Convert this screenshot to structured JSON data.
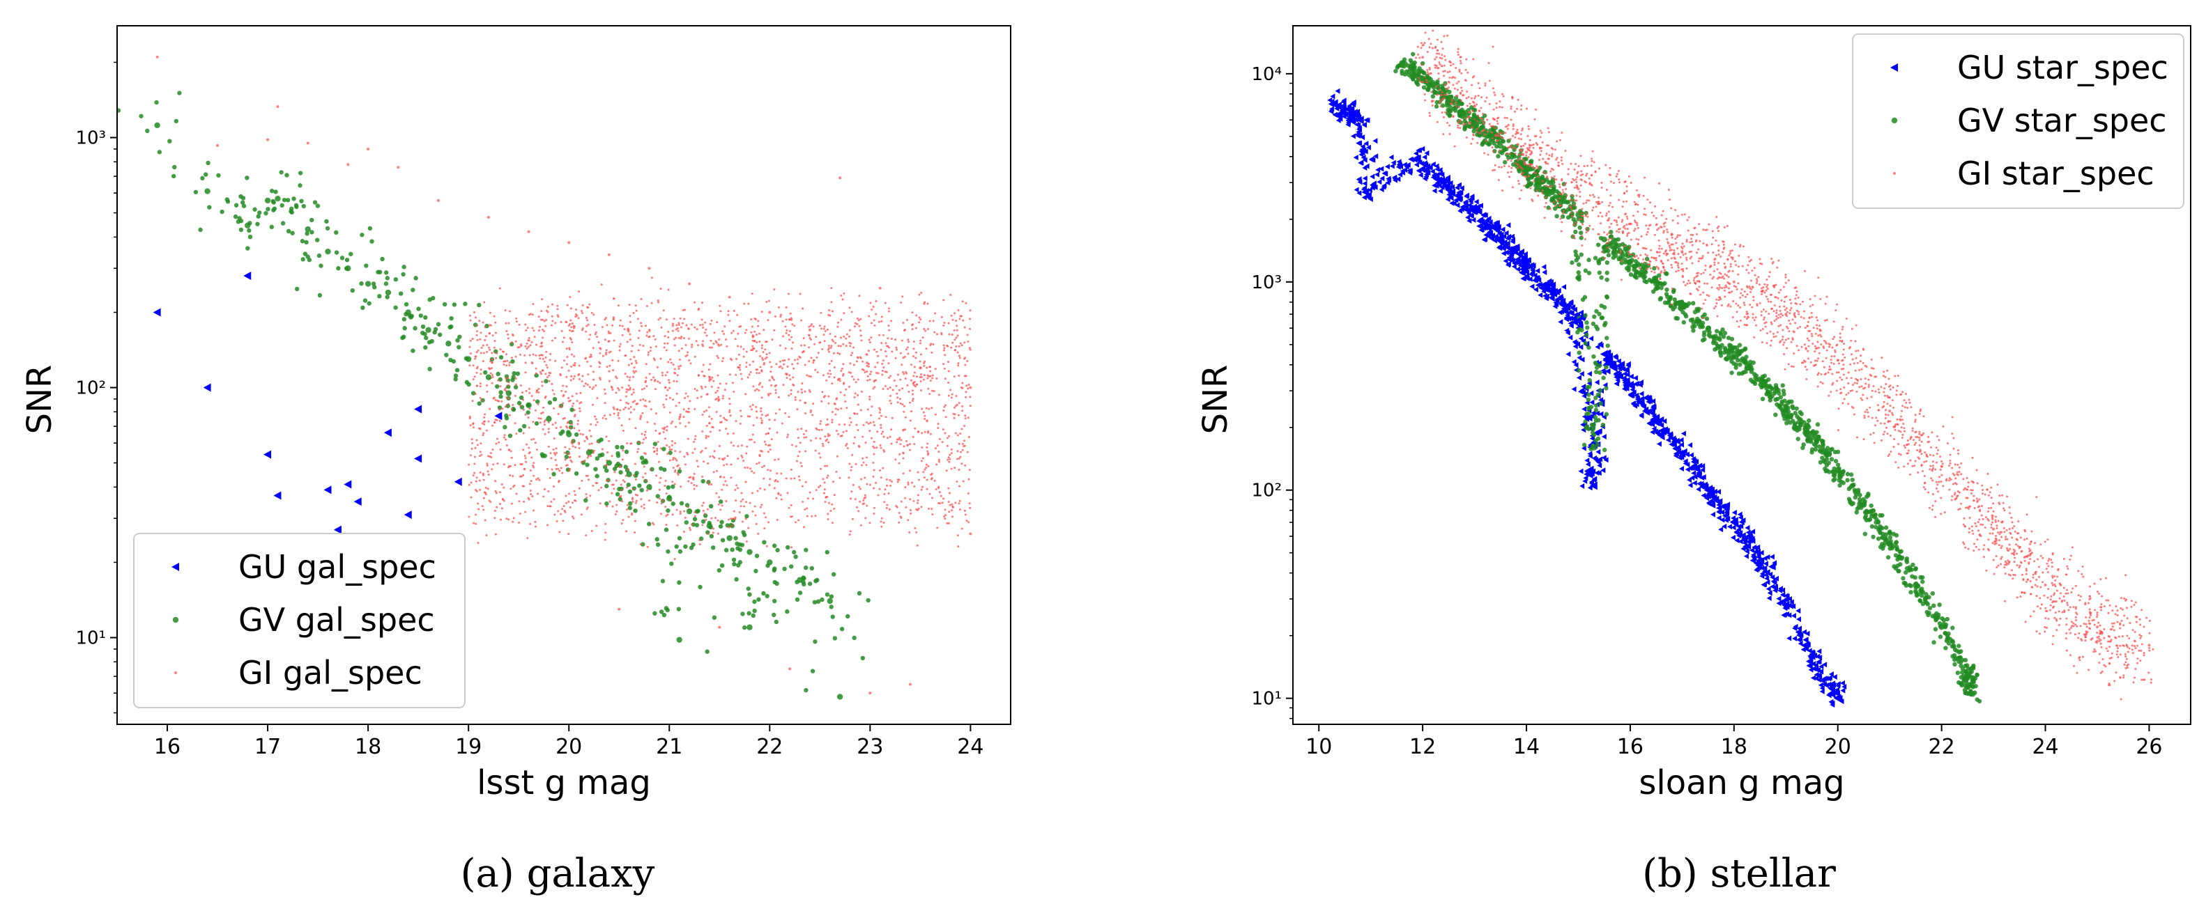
{
  "captions": {
    "a": "(a) galaxy",
    "b": "(b) stellar"
  },
  "colors": {
    "GU": "#0000ff",
    "GV": "#228b22",
    "GI": "#ff4d4d"
  },
  "chart_data": [
    {
      "type": "scatter",
      "title": "",
      "xlabel": "lsst g mag",
      "ylabel": "SNR",
      "xlim": [
        15.5,
        24.4
      ],
      "ylim": [
        4.5,
        2800
      ],
      "yscale": "log",
      "xticks": [
        16,
        17,
        18,
        19,
        20,
        21,
        22,
        23,
        24
      ],
      "xtick_labels": [
        "16",
        "17",
        "18",
        "19",
        "20",
        "21",
        "22",
        "23",
        "24"
      ],
      "yticks": [
        10,
        100,
        1000
      ],
      "ytick_labels": [
        "10¹",
        "10²",
        "10³"
      ],
      "grid": false,
      "legend_position": "bottom-left",
      "series": [
        {
          "name": "GU gal_spec",
          "marker": "triangle-left",
          "color": "#0000ff",
          "points": [
            [
              15.9,
              200
            ],
            [
              16.4,
              100
            ],
            [
              16.8,
              280
            ],
            [
              17.0,
              54
            ],
            [
              17.1,
              37
            ],
            [
              17.6,
              39
            ],
            [
              17.7,
              27
            ],
            [
              17.8,
              41
            ],
            [
              17.9,
              35
            ],
            [
              18.2,
              66
            ],
            [
              18.4,
              31
            ],
            [
              18.5,
              52
            ],
            [
              18.5,
              82
            ],
            [
              18.9,
              42
            ],
            [
              19.3,
              77
            ]
          ]
        },
        {
          "name": "GV gal_spec",
          "marker": "circle",
          "color": "#228b22",
          "points": [
            [
              15.9,
              1120
            ],
            [
              16.4,
              610
            ],
            [
              16.8,
              445
            ],
            [
              17.0,
              560
            ],
            [
              17.1,
              570
            ],
            [
              17.4,
              430
            ],
            [
              17.6,
              350
            ],
            [
              17.8,
              300
            ],
            [
              18.0,
              260
            ],
            [
              18.2,
              240
            ],
            [
              18.4,
              200
            ],
            [
              18.6,
              170
            ],
            [
              18.8,
              150
            ],
            [
              19.0,
              130
            ],
            [
              19.2,
              110
            ],
            [
              19.4,
              95
            ],
            [
              19.6,
              85
            ],
            [
              19.8,
              75
            ],
            [
              20.0,
              65
            ],
            [
              20.2,
              55
            ],
            [
              20.4,
              50
            ],
            [
              20.6,
              45
            ],
            [
              20.8,
              40
            ],
            [
              21.0,
              36
            ],
            [
              21.2,
              32
            ],
            [
              21.4,
              28
            ],
            [
              21.6,
              25
            ],
            [
              21.8,
              22
            ],
            [
              22.0,
              20
            ],
            [
              22.3,
              17
            ],
            [
              22.6,
              14
            ],
            [
              22.7,
              5.8
            ],
            [
              21.1,
              9.8
            ],
            [
              21.8,
              11
            ]
          ]
        },
        {
          "name": "GI gal_spec",
          "marker": "point",
          "color": "#ff4d4d",
          "points": [
            [
              15.9,
              2100
            ],
            [
              16.5,
              930
            ],
            [
              17.1,
              1330
            ],
            [
              17.0,
              980
            ],
            [
              17.4,
              950
            ],
            [
              17.8,
              780
            ],
            [
              18.0,
              900
            ],
            [
              18.3,
              760
            ],
            [
              18.7,
              560
            ],
            [
              19.2,
              480
            ],
            [
              19.6,
              420
            ],
            [
              20.0,
              380
            ],
            [
              20.4,
              340
            ],
            [
              20.8,
              300
            ],
            [
              21.2,
              260
            ],
            [
              21.6,
              230
            ],
            [
              22.0,
              200
            ],
            [
              22.4,
              170
            ],
            [
              22.7,
              690
            ],
            [
              23.1,
              250
            ],
            [
              23.5,
              120
            ],
            [
              24.0,
              100
            ],
            [
              20.5,
              13
            ],
            [
              21.5,
              11
            ],
            [
              22.2,
              7.5
            ],
            [
              23.0,
              6
            ],
            [
              23.4,
              6.5
            ],
            [
              24.0,
              26
            ]
          ]
        }
      ]
    },
    {
      "type": "scatter",
      "title": "",
      "xlabel": "sloan g mag",
      "ylabel": "SNR",
      "xlim": [
        9.5,
        26.8
      ],
      "ylim": [
        7.5,
        17000
      ],
      "yscale": "log",
      "xticks": [
        10,
        12,
        14,
        16,
        18,
        20,
        22,
        24,
        26
      ],
      "xtick_labels": [
        "10",
        "12",
        "14",
        "16",
        "18",
        "20",
        "22",
        "24",
        "26"
      ],
      "yticks": [
        10,
        100,
        1000,
        10000
      ],
      "ytick_labels": [
        "10¹",
        "10²",
        "10³",
        "10⁴"
      ],
      "grid": false,
      "legend_position": "top-right",
      "series": [
        {
          "name": "GU star_spec",
          "marker": "triangle-left",
          "color": "#0000ff",
          "points": [
            [
              10.3,
              7200
            ],
            [
              10.8,
              6000
            ],
            [
              10.9,
              2700
            ],
            [
              11.9,
              3900
            ],
            [
              12.5,
              2800
            ],
            [
              13.0,
              2200
            ],
            [
              13.5,
              1600
            ],
            [
              14.0,
              1200
            ],
            [
              14.5,
              900
            ],
            [
              15.0,
              650
            ],
            [
              15.5,
              450
            ],
            [
              16.0,
              320
            ],
            [
              16.5,
              220
            ],
            [
              17.0,
              150
            ],
            [
              17.5,
              100
            ],
            [
              18.0,
              70
            ],
            [
              18.5,
              45
            ],
            [
              19.0,
              28
            ],
            [
              19.5,
              16
            ],
            [
              20.0,
              10
            ],
            [
              15.3,
              105
            ]
          ]
        },
        {
          "name": "GV star_spec",
          "marker": "circle",
          "color": "#228b22",
          "points": [
            [
              11.6,
              11000
            ],
            [
              12.0,
              9500
            ],
            [
              12.5,
              7500
            ],
            [
              13.0,
              5800
            ],
            [
              13.5,
              4500
            ],
            [
              14.0,
              3500
            ],
            [
              14.5,
              2700
            ],
            [
              15.0,
              2100
            ],
            [
              15.5,
              1600
            ],
            [
              16.0,
              1250
            ],
            [
              16.5,
              980
            ],
            [
              17.0,
              760
            ],
            [
              17.5,
              590
            ],
            [
              18.0,
              450
            ],
            [
              18.5,
              340
            ],
            [
              19.0,
              250
            ],
            [
              19.5,
              180
            ],
            [
              20.0,
              125
            ],
            [
              20.5,
              85
            ],
            [
              21.0,
              55
            ],
            [
              21.5,
              35
            ],
            [
              22.0,
              22
            ],
            [
              22.5,
              13
            ],
            [
              22.6,
              10.5
            ],
            [
              15.3,
              160
            ]
          ]
        },
        {
          "name": "GI star_spec",
          "marker": "point",
          "color": "#ff4d4d",
          "points": [
            [
              12.0,
              12000
            ],
            [
              13.0,
              7000
            ],
            [
              14.0,
              4200
            ],
            [
              15.0,
              2800
            ],
            [
              16.0,
              1900
            ],
            [
              17.0,
              1400
            ],
            [
              18.0,
              1000
            ],
            [
              19.0,
              700
            ],
            [
              20.0,
              420
            ],
            [
              21.0,
              240
            ],
            [
              22.0,
              130
            ],
            [
              23.0,
              65
            ],
            [
              24.0,
              35
            ],
            [
              25.0,
              22
            ],
            [
              26.0,
              18
            ]
          ]
        }
      ]
    }
  ]
}
